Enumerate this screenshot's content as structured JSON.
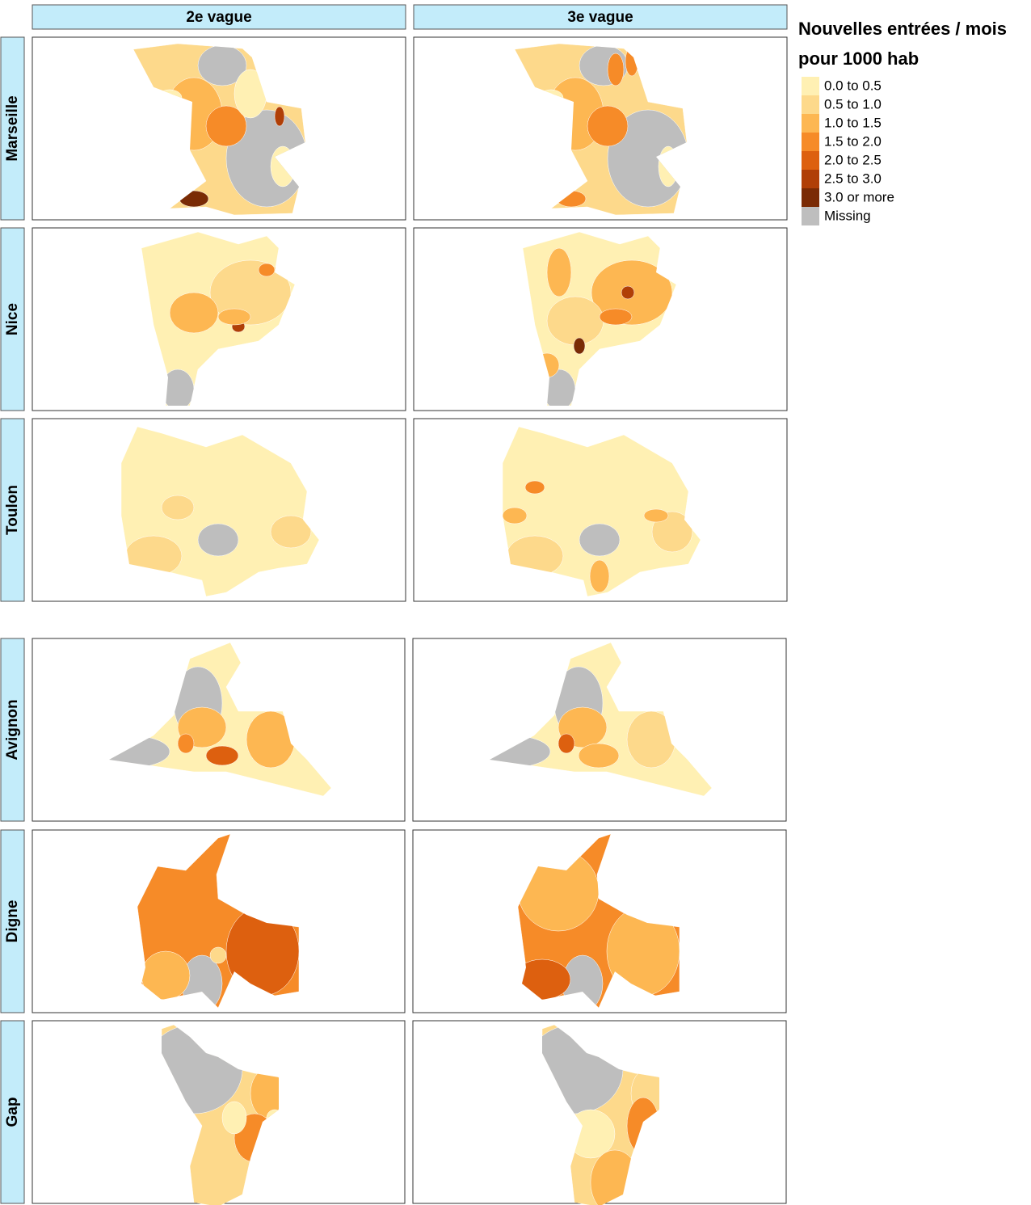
{
  "columns": [
    "2e vague",
    "3e vague"
  ],
  "rows": [
    "Marseille",
    "Nice",
    "Toulon",
    "Avignon",
    "Digne",
    "Gap"
  ],
  "legend": {
    "title": [
      "Nouvelles entrées / mois",
      "pour 1000 hab"
    ],
    "items": [
      {
        "label": "0.0 to 0.5",
        "color": "#fff0b3"
      },
      {
        "label": "0.5 to 1.0",
        "color": "#fdd98b"
      },
      {
        "label": "1.0 to 1.5",
        "color": "#fdb752"
      },
      {
        "label": "1.5 to 2.0",
        "color": "#f68b28"
      },
      {
        "label": "2.0 to 2.5",
        "color": "#dd600f"
      },
      {
        "label": "2.5 to 3.0",
        "color": "#b03f07"
      },
      {
        "label": "3.0 or more",
        "color": "#7a2b05"
      },
      {
        "label": "Missing",
        "color": "#bebebe"
      }
    ]
  }
}
